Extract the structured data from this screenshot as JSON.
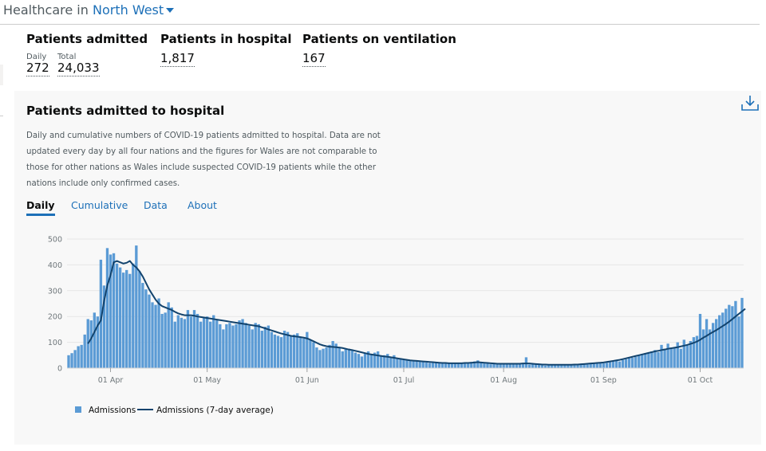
{
  "header": {
    "prefix": "Healthcare in",
    "region": "North West"
  },
  "metrics": {
    "admitted": {
      "title": "Patients admitted",
      "daily_label": "Daily",
      "daily_value": "272",
      "total_label": "Total",
      "total_value": "24,033"
    },
    "hospital": {
      "title": "Patients in hospital",
      "value": "1,817"
    },
    "ventilation": {
      "title": "Patients on ventilation",
      "value": "167"
    }
  },
  "card": {
    "title": "Patients admitted to hospital",
    "description": "Daily and cumulative numbers of COVID-19 patients admitted to hospital. Data are not updated every day by all four nations and the figures for Wales are not comparable to those for other nations as Wales include suspected COVID-19 patients while the other nations include only confirmed cases.",
    "tabs": [
      "Daily",
      "Cumulative",
      "Data",
      "About"
    ],
    "active_tab": "Daily",
    "download_icon": "download-icon"
  },
  "colors": {
    "bar": "#5b9bd5",
    "line": "#12436d",
    "link": "#1d70b8",
    "grid": "#e6e6e6"
  },
  "chart_data": {
    "type": "bar",
    "start_date": "2020-03-19",
    "ylim": [
      0,
      500
    ],
    "yticks": [
      0,
      100,
      200,
      300,
      400,
      500
    ],
    "xtick_labels": [
      {
        "label": "01 Apr",
        "day_index": 13
      },
      {
        "label": "01 May",
        "day_index": 43
      },
      {
        "label": "01 Jun",
        "day_index": 74
      },
      {
        "label": "01 Jul",
        "day_index": 104
      },
      {
        "label": "01 Aug",
        "day_index": 135
      },
      {
        "label": "01 Sep",
        "day_index": 166
      },
      {
        "label": "01 Oct",
        "day_index": 196
      }
    ],
    "series": [
      {
        "name": "Admissions",
        "kind": "bar",
        "values": [
          50,
          58,
          70,
          85,
          90,
          130,
          190,
          185,
          215,
          200,
          420,
          320,
          465,
          440,
          445,
          405,
          390,
          370,
          380,
          365,
          405,
          475,
          375,
          330,
          305,
          285,
          255,
          245,
          270,
          210,
          215,
          255,
          235,
          180,
          205,
          195,
          190,
          225,
          200,
          225,
          210,
          180,
          195,
          200,
          180,
          205,
          185,
          170,
          150,
          170,
          175,
          165,
          170,
          185,
          190,
          175,
          165,
          150,
          175,
          170,
          145,
          160,
          165,
          140,
          130,
          125,
          120,
          145,
          140,
          125,
          130,
          135,
          120,
          115,
          140,
          110,
          100,
          80,
          70,
          75,
          80,
          90,
          105,
          95,
          80,
          65,
          75,
          75,
          70,
          60,
          55,
          45,
          60,
          65,
          55,
          60,
          65,
          45,
          50,
          55,
          40,
          50,
          40,
          38,
          35,
          32,
          30,
          28,
          28,
          25,
          24,
          22,
          20,
          21,
          20,
          22,
          21,
          19,
          18,
          17,
          18,
          17,
          19,
          18,
          20,
          24,
          26,
          30,
          20,
          18,
          17,
          15,
          16,
          14,
          15,
          18,
          17,
          19,
          16,
          14,
          15,
          17,
          42,
          14,
          16,
          18,
          17,
          12,
          10,
          12,
          11,
          13,
          12,
          14,
          12,
          11,
          13,
          12,
          14,
          15,
          18,
          14,
          16,
          18,
          20,
          22,
          19,
          21,
          24,
          28,
          30,
          26,
          32,
          35,
          38,
          40,
          44,
          50,
          55,
          58,
          60,
          65,
          70,
          62,
          90,
          75,
          95,
          80,
          80,
          100,
          75,
          110,
          90,
          105,
          120,
          125,
          210,
          150,
          190,
          150,
          175,
          190,
          205,
          215,
          230,
          245,
          240,
          260,
          200,
          272
        ]
      },
      {
        "name": "Admissions (7-day average)",
        "kind": "line",
        "values": [
          null,
          null,
          null,
          null,
          null,
          null,
          95,
          115,
          140,
          165,
          185,
          260,
          320,
          360,
          410,
          415,
          410,
          405,
          408,
          415,
          400,
          390,
          375,
          355,
          330,
          305,
          285,
          265,
          250,
          240,
          235,
          230,
          225,
          218,
          212,
          208,
          205,
          205,
          205,
          203,
          200,
          198,
          196,
          194,
          192,
          190,
          188,
          186,
          184,
          182,
          180,
          178,
          176,
          174,
          172,
          170,
          168,
          166,
          164,
          162,
          158,
          154,
          150,
          146,
          142,
          138,
          134,
          131,
          128,
          125,
          123,
          122,
          120,
          118,
          115,
          110,
          104,
          98,
          92,
          88,
          85,
          83,
          82,
          81,
          80,
          78,
          75,
          72,
          70,
          67,
          64,
          61,
          58,
          55,
          53,
          51,
          49,
          47,
          45,
          44,
          42,
          40,
          38,
          36,
          34,
          32,
          30,
          29,
          28,
          27,
          26,
          25,
          24,
          23,
          22,
          21,
          20,
          20,
          19,
          19,
          19,
          19,
          19,
          20,
          20,
          21,
          22,
          23,
          22,
          21,
          20,
          19,
          18,
          17,
          17,
          17,
          17,
          17,
          17,
          17,
          17,
          18,
          18,
          18,
          17,
          16,
          15,
          14,
          14,
          13,
          13,
          13,
          13,
          13,
          13,
          13,
          13,
          14,
          14,
          15,
          16,
          17,
          18,
          19,
          20,
          21,
          22,
          24,
          26,
          28,
          30,
          32,
          35,
          38,
          41,
          44,
          47,
          50,
          53,
          56,
          59,
          62,
          65,
          67,
          70,
          72,
          75,
          77,
          79,
          81,
          84,
          87,
          90,
          94,
          98,
          103,
          110,
          118,
          125,
          133,
          140,
          147,
          155,
          163,
          171,
          180,
          190,
          200,
          210,
          220,
          230
        ]
      }
    ]
  }
}
